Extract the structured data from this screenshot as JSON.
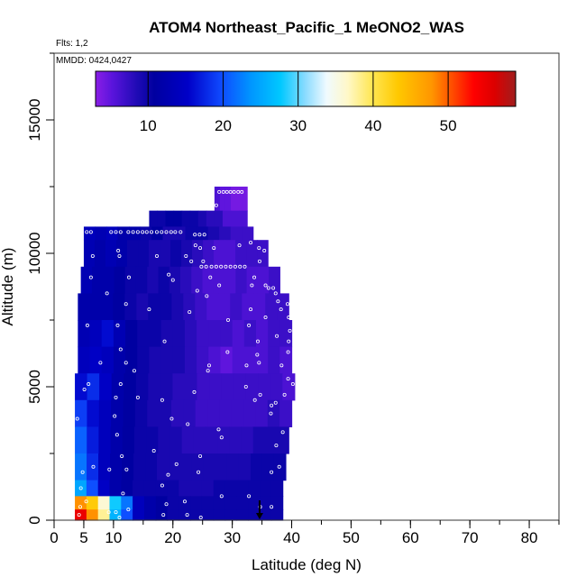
{
  "chart_data": {
    "type": "heatmap",
    "title": "ATOM4 Northeast_Pacific_1 MeONO2_WAS",
    "flights_label": "Flts: 1,2",
    "dates_label": "MMDD: 0424,0427",
    "xlabel": "Latitude (deg N)",
    "ylabel": "Altitude (m)",
    "xlim": [
      0,
      85
    ],
    "ylim": [
      0,
      17500
    ],
    "x_ticks": [
      0,
      5,
      10,
      20,
      30,
      40,
      50,
      60,
      70,
      80
    ],
    "y_ticks": [
      0,
      5000,
      10000,
      15000
    ],
    "colorbar": {
      "range": [
        3,
        59
      ],
      "ticks": [
        10,
        20,
        30,
        40,
        50
      ],
      "colors": [
        "#8a1ee6",
        "#5a14dc",
        "#1e0ab4",
        "#0000a0",
        "#0000c8",
        "#0f4bff",
        "#0096ff",
        "#00c8ff",
        "#8cdcff",
        "#f0faff",
        "#fff8c8",
        "#ffe650",
        "#ffc800",
        "#ff9600",
        "#ff3c00",
        "#ff0000",
        "#dc0000",
        "#a01e1e"
      ],
      "stops": [
        0,
        0.04,
        0.1,
        0.14,
        0.22,
        0.3,
        0.37,
        0.44,
        0.5,
        0.55,
        0.6,
        0.66,
        0.72,
        0.8,
        0.86,
        0.9,
        0.95,
        1
      ]
    },
    "grid": false,
    "bin_rows": [
      {
        "alt": [
          11600,
          12500
        ],
        "lat": [
          27,
          32.5
        ],
        "values": [
          6,
          5,
          5,
          4,
          4,
          4
        ]
      },
      {
        "alt": [
          11000,
          11600
        ],
        "lat": [
          16,
          32.5
        ],
        "values": [
          10,
          10,
          11,
          11,
          10,
          10,
          9,
          8,
          8,
          6,
          6,
          6
        ]
      },
      {
        "alt": [
          10500,
          11000
        ],
        "lat": [
          5,
          33.5
        ],
        "values": [
          14,
          13,
          14,
          12,
          12,
          10,
          11,
          9,
          9,
          10,
          10,
          9,
          8,
          7,
          7
        ]
      },
      {
        "alt": [
          9500,
          10500
        ],
        "lat": [
          5,
          36
        ],
        "values": [
          13,
          12,
          13,
          12,
          10,
          10,
          9,
          9,
          10,
          9,
          8,
          7,
          6,
          6,
          7,
          7,
          7
        ]
      },
      {
        "alt": [
          8500,
          9500
        ],
        "lat": [
          4.5,
          38
        ],
        "values": [
          13,
          12,
          12,
          11,
          10,
          10,
          9,
          10,
          9,
          8,
          7,
          6,
          6,
          6,
          7,
          6,
          6,
          7
        ]
      },
      {
        "alt": [
          7500,
          8500
        ],
        "lat": [
          4,
          39.5
        ],
        "values": [
          12,
          12,
          12,
          11,
          10,
          9,
          10,
          10,
          9,
          8,
          7,
          6,
          6,
          7,
          6,
          6,
          7,
          7
        ]
      },
      {
        "alt": [
          6500,
          7500
        ],
        "lat": [
          4,
          40
        ],
        "values": [
          13,
          14,
          16,
          13,
          11,
          10,
          10,
          9,
          9,
          8,
          7,
          7,
          7,
          6,
          7,
          6,
          7,
          7
        ]
      },
      {
        "alt": [
          5500,
          6500
        ],
        "lat": [
          4,
          40
        ],
        "values": [
          14,
          15,
          14,
          12,
          11,
          10,
          9,
          9,
          9,
          8,
          7,
          6,
          5,
          6,
          6,
          6,
          7,
          6
        ]
      },
      {
        "alt": [
          4500,
          5500
        ],
        "lat": [
          3.5,
          40.5
        ],
        "values": [
          16,
          18,
          15,
          12,
          11,
          10,
          9,
          9,
          8,
          8,
          7,
          7,
          7,
          7,
          7,
          7,
          7,
          6
        ]
      },
      {
        "alt": [
          3500,
          4500
        ],
        "lat": [
          3.5,
          40
        ],
        "values": [
          19,
          16,
          14,
          12,
          11,
          10,
          9,
          9,
          8,
          8,
          7,
          7,
          7,
          7,
          7,
          7,
          8,
          7
        ]
      },
      {
        "alt": [
          2500,
          3500
        ],
        "lat": [
          3.5,
          39.5
        ],
        "values": [
          21,
          17,
          14,
          12,
          11,
          10,
          10,
          9,
          9,
          8,
          8,
          8,
          8,
          8,
          8,
          9,
          9,
          9
        ]
      },
      {
        "alt": [
          1500,
          2500
        ],
        "lat": [
          3.5,
          39
        ],
        "values": [
          22,
          18,
          14,
          12,
          11,
          10,
          10,
          9,
          9,
          9,
          9,
          9,
          9,
          9,
          9,
          10,
          10,
          10
        ]
      },
      {
        "alt": [
          900,
          1500
        ],
        "lat": [
          3.5,
          38.5
        ],
        "values": [
          25,
          20,
          15,
          12,
          11,
          10,
          10,
          10,
          10,
          9,
          9,
          9,
          10,
          10,
          10,
          10,
          10,
          10
        ]
      },
      {
        "alt": [
          400,
          900
        ],
        "lat": [
          3.5,
          38.5
        ],
        "values": [
          48,
          43,
          36,
          28,
          22,
          14,
          12,
          11,
          10,
          10,
          10,
          10,
          10,
          10,
          10,
          10,
          10,
          10
        ]
      },
      {
        "alt": [
          0,
          400
        ],
        "lat": [
          3.5,
          38.5
        ],
        "values": [
          55,
          48,
          38,
          26,
          20,
          14,
          12,
          11,
          10,
          10,
          10,
          10,
          10,
          10,
          10,
          10,
          10,
          10
        ]
      }
    ],
    "samples": [
      {
        "lat": 27.8,
        "alt": 12300
      },
      {
        "lat": 28.5,
        "alt": 12300
      },
      {
        "lat": 29.1,
        "alt": 12300
      },
      {
        "lat": 29.7,
        "alt": 12300
      },
      {
        "lat": 30.3,
        "alt": 12300
      },
      {
        "lat": 31,
        "alt": 12300
      },
      {
        "lat": 31.6,
        "alt": 12300
      },
      {
        "lat": 27.3,
        "alt": 11800
      },
      {
        "lat": 5.7,
        "alt": 11400
      },
      {
        "lat": 6.5,
        "alt": 11400
      },
      {
        "lat": 7.2,
        "alt": 11400
      },
      {
        "lat": 7.9,
        "alt": 11400
      },
      {
        "lat": 8.7,
        "alt": 11400
      },
      {
        "lat": 9.5,
        "alt": 11400
      },
      {
        "lat": 10.4,
        "alt": 11400
      },
      {
        "lat": 11.3,
        "alt": 11400
      },
      {
        "lat": 5.5,
        "alt": 10800
      },
      {
        "lat": 6.2,
        "alt": 10800
      },
      {
        "lat": 9.6,
        "alt": 10800
      },
      {
        "lat": 10.4,
        "alt": 10800
      },
      {
        "lat": 11.2,
        "alt": 10800
      },
      {
        "lat": 12.5,
        "alt": 10800
      },
      {
        "lat": 13.3,
        "alt": 10800
      },
      {
        "lat": 14.1,
        "alt": 10800
      },
      {
        "lat": 14.9,
        "alt": 10800
      },
      {
        "lat": 15.6,
        "alt": 10800
      },
      {
        "lat": 16.4,
        "alt": 10800
      },
      {
        "lat": 17.3,
        "alt": 10800
      },
      {
        "lat": 18.1,
        "alt": 10800
      },
      {
        "lat": 18.9,
        "alt": 10800
      },
      {
        "lat": 19.7,
        "alt": 10800
      },
      {
        "lat": 20.4,
        "alt": 10800
      },
      {
        "lat": 21.3,
        "alt": 10800
      },
      {
        "lat": 23.7,
        "alt": 10700
      },
      {
        "lat": 24.5,
        "alt": 10700
      },
      {
        "lat": 25.3,
        "alt": 10700
      },
      {
        "lat": 23.8,
        "alt": 10300
      },
      {
        "lat": 24.6,
        "alt": 10200
      },
      {
        "lat": 26.9,
        "alt": 10200
      },
      {
        "lat": 31.2,
        "alt": 10300
      },
      {
        "lat": 33.1,
        "alt": 10400
      },
      {
        "lat": 34.5,
        "alt": 10200
      },
      {
        "lat": 35.4,
        "alt": 10100
      },
      {
        "lat": 10.8,
        "alt": 10100
      },
      {
        "lat": 6.5,
        "alt": 9900
      },
      {
        "lat": 11,
        "alt": 9900
      },
      {
        "lat": 17.3,
        "alt": 9900
      },
      {
        "lat": 22.2,
        "alt": 9900
      },
      {
        "lat": 23.1,
        "alt": 9700
      },
      {
        "lat": 25.1,
        "alt": 9700
      },
      {
        "lat": 34.6,
        "alt": 9700
      },
      {
        "lat": 24.8,
        "alt": 9500
      },
      {
        "lat": 25.6,
        "alt": 9500
      },
      {
        "lat": 26.5,
        "alt": 9500
      },
      {
        "lat": 27.3,
        "alt": 9500
      },
      {
        "lat": 28.1,
        "alt": 9500
      },
      {
        "lat": 28.9,
        "alt": 9500
      },
      {
        "lat": 29.7,
        "alt": 9500
      },
      {
        "lat": 30.5,
        "alt": 9500
      },
      {
        "lat": 31.3,
        "alt": 9500
      },
      {
        "lat": 32.1,
        "alt": 9500
      },
      {
        "lat": 6.2,
        "alt": 9100
      },
      {
        "lat": 12.6,
        "alt": 9100
      },
      {
        "lat": 19.3,
        "alt": 9200
      },
      {
        "lat": 20,
        "alt": 9000
      },
      {
        "lat": 26.3,
        "alt": 9100
      },
      {
        "lat": 33.7,
        "alt": 9100
      },
      {
        "lat": 27.8,
        "alt": 8800
      },
      {
        "lat": 33.3,
        "alt": 8800
      },
      {
        "lat": 35.6,
        "alt": 8800
      },
      {
        "lat": 36.1,
        "alt": 8700
      },
      {
        "lat": 36.9,
        "alt": 8700
      },
      {
        "lat": 24.1,
        "alt": 8600
      },
      {
        "lat": 8.9,
        "alt": 8500
      },
      {
        "lat": 25.7,
        "alt": 8400
      },
      {
        "lat": 37.3,
        "alt": 8500
      },
      {
        "lat": 37.7,
        "alt": 8200
      },
      {
        "lat": 12.1,
        "alt": 8100
      },
      {
        "lat": 39.3,
        "alt": 8100
      },
      {
        "lat": 33.1,
        "alt": 7900
      },
      {
        "lat": 38.2,
        "alt": 7900
      },
      {
        "lat": 16,
        "alt": 7900
      },
      {
        "lat": 22.8,
        "alt": 7800
      },
      {
        "lat": 35.6,
        "alt": 7600
      },
      {
        "lat": 29.3,
        "alt": 7500
      },
      {
        "lat": 39.5,
        "alt": 7600
      },
      {
        "lat": 5.6,
        "alt": 7300
      },
      {
        "lat": 10.7,
        "alt": 7300
      },
      {
        "lat": 32.8,
        "alt": 7300
      },
      {
        "lat": 39.7,
        "alt": 7100
      },
      {
        "lat": 37.5,
        "alt": 6900
      },
      {
        "lat": 18.6,
        "alt": 6700
      },
      {
        "lat": 34.3,
        "alt": 6700
      },
      {
        "lat": 39.5,
        "alt": 6700
      },
      {
        "lat": 11.2,
        "alt": 6400
      },
      {
        "lat": 29.2,
        "alt": 6300
      },
      {
        "lat": 34.2,
        "alt": 6200
      },
      {
        "lat": 39.4,
        "alt": 6300
      },
      {
        "lat": 34.5,
        "alt": 5900
      },
      {
        "lat": 7.8,
        "alt": 5900
      },
      {
        "lat": 12.1,
        "alt": 5900
      },
      {
        "lat": 26.1,
        "alt": 5800
      },
      {
        "lat": 32.4,
        "alt": 5800
      },
      {
        "lat": 38.3,
        "alt": 5800
      },
      {
        "lat": 13.5,
        "alt": 5600
      },
      {
        "lat": 25.9,
        "alt": 5600
      },
      {
        "lat": 39.4,
        "alt": 5300
      },
      {
        "lat": 5.8,
        "alt": 5100
      },
      {
        "lat": 11.2,
        "alt": 5100
      },
      {
        "lat": 40.2,
        "alt": 5100
      },
      {
        "lat": 5.1,
        "alt": 4900
      },
      {
        "lat": 32.3,
        "alt": 5000
      },
      {
        "lat": 23.6,
        "alt": 4800
      },
      {
        "lat": 38.8,
        "alt": 4700
      },
      {
        "lat": 34.7,
        "alt": 4700
      },
      {
        "lat": 10.4,
        "alt": 4600
      },
      {
        "lat": 14.1,
        "alt": 4600
      },
      {
        "lat": 18.2,
        "alt": 4500
      },
      {
        "lat": 33.8,
        "alt": 4500
      },
      {
        "lat": 37.3,
        "alt": 4400
      },
      {
        "lat": 36.6,
        "alt": 4300
      },
      {
        "lat": 36.5,
        "alt": 4000
      },
      {
        "lat": 10.2,
        "alt": 3900
      },
      {
        "lat": 3.9,
        "alt": 3800
      },
      {
        "lat": 19.8,
        "alt": 3800
      },
      {
        "lat": 22.5,
        "alt": 3600
      },
      {
        "lat": 27.7,
        "alt": 3400
      },
      {
        "lat": 38.5,
        "alt": 3300
      },
      {
        "lat": 10.6,
        "alt": 3200
      },
      {
        "lat": 28.2,
        "alt": 3100
      },
      {
        "lat": 37.4,
        "alt": 2800
      },
      {
        "lat": 16.8,
        "alt": 2600
      },
      {
        "lat": 24.6,
        "alt": 2400
      },
      {
        "lat": 11.4,
        "alt": 2400
      },
      {
        "lat": 20.6,
        "alt": 2100
      },
      {
        "lat": 6.6,
        "alt": 2000
      },
      {
        "lat": 37.9,
        "alt": 2000
      },
      {
        "lat": 9.3,
        "alt": 1900
      },
      {
        "lat": 12.2,
        "alt": 1900
      },
      {
        "lat": 4.8,
        "alt": 1800
      },
      {
        "lat": 24.3,
        "alt": 1800
      },
      {
        "lat": 36.6,
        "alt": 1800
      },
      {
        "lat": 19.2,
        "alt": 1700
      },
      {
        "lat": 4.5,
        "alt": 1200
      },
      {
        "lat": 18.2,
        "alt": 1300
      },
      {
        "lat": 11.6,
        "alt": 1000
      },
      {
        "lat": 28.2,
        "alt": 900
      },
      {
        "lat": 32.8,
        "alt": 900
      },
      {
        "lat": 5.4,
        "alt": 700
      },
      {
        "lat": 22,
        "alt": 700
      },
      {
        "lat": 4.4,
        "alt": 500
      },
      {
        "lat": 18.9,
        "alt": 600
      },
      {
        "lat": 34.7,
        "alt": 500
      },
      {
        "lat": 36.6,
        "alt": 500
      },
      {
        "lat": 12.5,
        "alt": 400
      },
      {
        "lat": 9.2,
        "alt": 300
      },
      {
        "lat": 10.4,
        "alt": 300
      },
      {
        "lat": 18.4,
        "alt": 200
      },
      {
        "lat": 22.4,
        "alt": 200
      },
      {
        "lat": 24.7,
        "alt": 100
      },
      {
        "lat": 4.2,
        "alt": 200
      },
      {
        "lat": 11,
        "alt": 100
      }
    ],
    "marker": {
      "lat": 34.6,
      "alt": 0
    }
  }
}
